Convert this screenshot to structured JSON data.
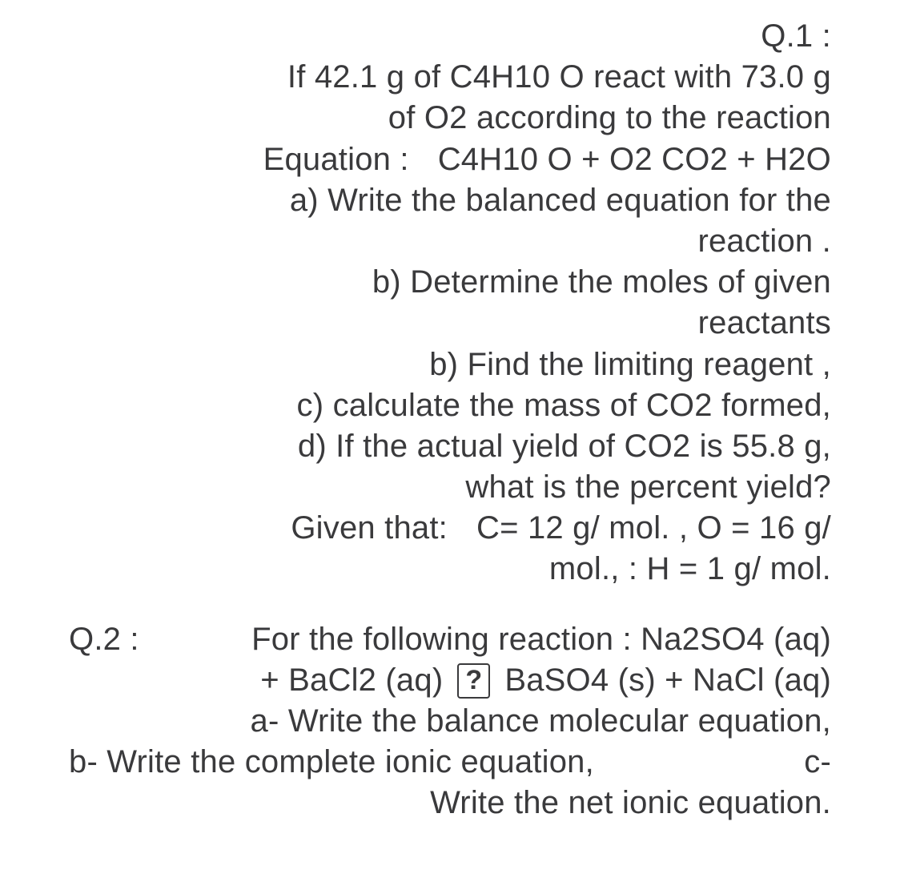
{
  "text_color": "#3a3a3c",
  "background_color": "#ffffff",
  "font_size_pt": 30,
  "q1": {
    "label": "Q.1 :",
    "l1": "If 42.1 g of C4H10 O   react with 73.0 g",
    "l2": "of O2  according to the reaction",
    "l3a": "Equation  :",
    "l3b": "C4H10 O + O2   CO2 + H2O",
    "l4": "a)  Write the balanced equation for the",
    "l5": "reaction .",
    "l6": "b) Determine the moles of given",
    "l7": "reactants",
    "l8": "b) Find the limiting reagent ,",
    "l9": "c) calculate the mass of CO2  formed,",
    "l10": "d) If the actual yield of CO2  is 55.8 g,",
    "l11": "what is the percent yield?",
    "l12a": "Given that:",
    "l12b": "C= 12 g/ mol. ,   O = 16 g/",
    "l13": "mol., :     H = 1 g/ mol."
  },
  "q2": {
    "l1a": "Q.2 :",
    "l1b": "For the following reaction :   Na2SO4 (aq)",
    "l2a": "+ BaCl2 (aq)",
    "arrow_glyph": "?",
    "l2b": "BaSO4 (s)  + NaCl (aq)",
    "l3": "a-    Write the balance molecular equation,",
    "l4a": "b- Write the complete ionic equation,",
    "l4b": "c-",
    "l5": "Write the net ionic equation."
  }
}
